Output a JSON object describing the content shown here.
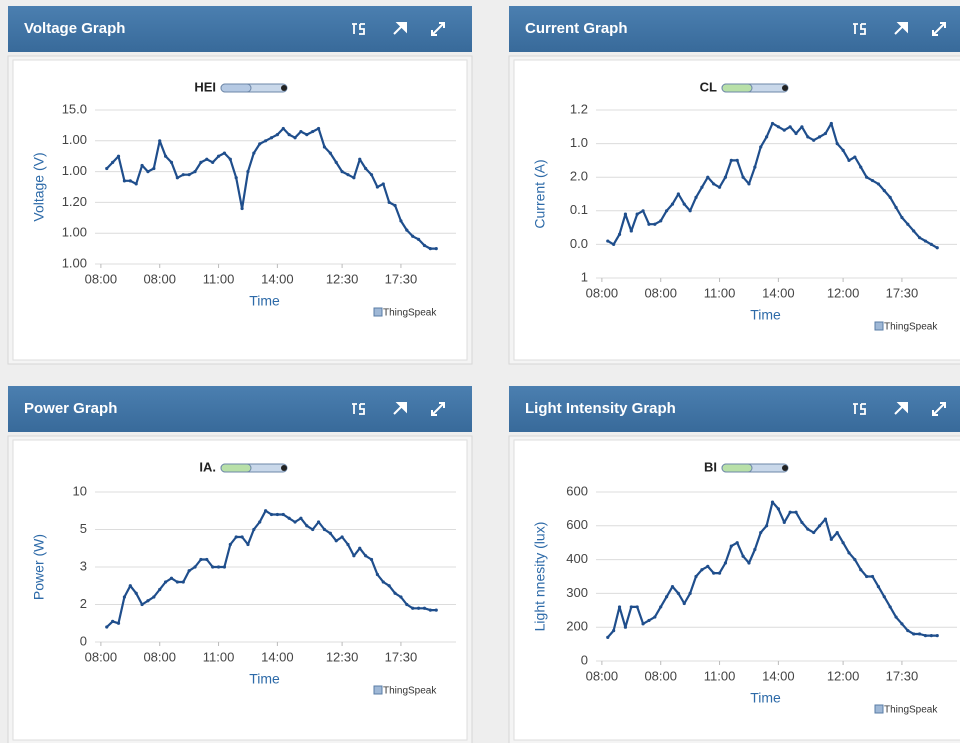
{
  "chart_data": [
    {
      "type": "line",
      "title": "Voltage Graph",
      "x_label": "Time",
      "y_label": "Voltage (V)",
      "credit": "ThingSpeak",
      "xlim": [
        0,
        60
      ],
      "ylim": [
        0,
        5
      ],
      "xticks": [
        {
          "value": 1,
          "label": "08:00"
        },
        {
          "value": 11,
          "label": "08:00"
        },
        {
          "value": 21,
          "label": "11:00"
        },
        {
          "value": 31,
          "label": "14:00"
        },
        {
          "value": 42,
          "label": "12:30"
        },
        {
          "value": 52,
          "label": "17:30"
        }
      ],
      "yticks": [
        {
          "value": 5,
          "label": "15.0"
        },
        {
          "value": 4,
          "label": "1.00"
        },
        {
          "value": 3,
          "label": "1.00"
        },
        {
          "value": 2,
          "label": "1.20"
        },
        {
          "value": 1,
          "label": "1.00"
        },
        {
          "value": 0,
          "label": "1.00"
        }
      ],
      "grid": true,
      "x": [
        2,
        3,
        4,
        5,
        6,
        7,
        8,
        9,
        10,
        11,
        12,
        13,
        14,
        15,
        16,
        17,
        18,
        19,
        20,
        21,
        22,
        23,
        24,
        25,
        26,
        27,
        28,
        29,
        30,
        31,
        32,
        33,
        34,
        35,
        36,
        37,
        38,
        39,
        40,
        41,
        42,
        43,
        44,
        45,
        46,
        47,
        48,
        49,
        50,
        51,
        52,
        53,
        54,
        55,
        56,
        57,
        58
      ],
      "series": [
        {
          "name": "HEI",
          "color": "#1f4e8c",
          "values": [
            3.1,
            3.3,
            3.5,
            2.7,
            2.7,
            2.6,
            3.2,
            3.0,
            3.1,
            4.0,
            3.5,
            3.3,
            2.8,
            2.9,
            2.9,
            3.0,
            3.3,
            3.4,
            3.3,
            3.5,
            3.6,
            3.4,
            2.8,
            1.8,
            3.0,
            3.6,
            3.9,
            4.0,
            4.1,
            4.2,
            4.4,
            4.2,
            4.1,
            4.3,
            4.2,
            4.3,
            4.4,
            3.8,
            3.6,
            3.3,
            3.0,
            2.9,
            2.8,
            3.4,
            3.1,
            2.9,
            2.5,
            2.6,
            2.0,
            1.9,
            1.4,
            1.1,
            0.9,
            0.8,
            0.6,
            0.5,
            0.5
          ]
        }
      ]
    },
    {
      "type": "line",
      "title": "Current Graph",
      "x_label": "Time",
      "y_label": "Current (A)",
      "credit": "ThingSpeak",
      "xlim": [
        0,
        60
      ],
      "ylim": [
        0,
        5
      ],
      "xticks": [
        {
          "value": 1,
          "label": "08:00"
        },
        {
          "value": 11,
          "label": "08:00"
        },
        {
          "value": 21,
          "label": "11:00"
        },
        {
          "value": 31,
          "label": "14:00"
        },
        {
          "value": 42,
          "label": "12:00"
        },
        {
          "value": 52,
          "label": "17:30"
        }
      ],
      "yticks": [
        {
          "value": 5,
          "label": "1.2"
        },
        {
          "value": 4,
          "label": "1.0"
        },
        {
          "value": 3,
          "label": "2.0"
        },
        {
          "value": 2,
          "label": "0.1"
        },
        {
          "value": 1,
          "label": "0.0"
        },
        {
          "value": 0,
          "label": "1"
        }
      ],
      "grid": true,
      "x": [
        2,
        3,
        4,
        5,
        6,
        7,
        8,
        9,
        10,
        11,
        12,
        13,
        14,
        15,
        16,
        17,
        18,
        19,
        20,
        21,
        22,
        23,
        24,
        25,
        26,
        27,
        28,
        29,
        30,
        31,
        32,
        33,
        34,
        35,
        36,
        37,
        38,
        39,
        40,
        41,
        42,
        43,
        44,
        45,
        46,
        47,
        48,
        49,
        50,
        51,
        52,
        53,
        54,
        55,
        56,
        57,
        58
      ],
      "series": [
        {
          "name": "CL",
          "color": "#1f4e8c",
          "values": [
            1.1,
            1.0,
            1.3,
            1.9,
            1.4,
            1.9,
            2.0,
            1.6,
            1.6,
            1.7,
            2.0,
            2.2,
            2.5,
            2.2,
            2.0,
            2.4,
            2.7,
            3.0,
            2.8,
            2.7,
            3.0,
            3.5,
            3.5,
            3.0,
            2.8,
            3.3,
            3.9,
            4.2,
            4.6,
            4.5,
            4.4,
            4.5,
            4.3,
            4.5,
            4.2,
            4.1,
            4.2,
            4.3,
            4.6,
            4.0,
            3.8,
            3.5,
            3.6,
            3.3,
            3.0,
            2.9,
            2.8,
            2.6,
            2.4,
            2.1,
            1.8,
            1.6,
            1.4,
            1.2,
            1.1,
            1.0,
            0.9
          ]
        }
      ]
    },
    {
      "type": "line",
      "title": "Power Graph",
      "x_label": "Time",
      "y_label": "Power (W)",
      "credit": "ThingSpeak",
      "xlim": [
        0,
        60
      ],
      "ylim": [
        0,
        4
      ],
      "xticks": [
        {
          "value": 1,
          "label": "08:00"
        },
        {
          "value": 11,
          "label": "08:00"
        },
        {
          "value": 21,
          "label": "11:00"
        },
        {
          "value": 31,
          "label": "14:00"
        },
        {
          "value": 42,
          "label": "12:30"
        },
        {
          "value": 52,
          "label": "17:30"
        }
      ],
      "yticks": [
        {
          "value": 4,
          "label": "10"
        },
        {
          "value": 3,
          "label": "5"
        },
        {
          "value": 2,
          "label": "3"
        },
        {
          "value": 1,
          "label": "2"
        },
        0
      ],
      "grid": true,
      "x": [
        2,
        3,
        4,
        5,
        6,
        7,
        8,
        9,
        10,
        11,
        12,
        13,
        14,
        15,
        16,
        17,
        18,
        19,
        20,
        21,
        22,
        23,
        24,
        25,
        26,
        27,
        28,
        29,
        30,
        31,
        32,
        33,
        34,
        35,
        36,
        37,
        38,
        39,
        40,
        41,
        42,
        43,
        44,
        45,
        46,
        47,
        48,
        49,
        50,
        51,
        52,
        53,
        54,
        55,
        56,
        57,
        58
      ],
      "series": [
        {
          "name": "IA.",
          "color": "#1f4e8c",
          "values": [
            0.4,
            0.55,
            0.5,
            1.2,
            1.5,
            1.3,
            1.0,
            1.1,
            1.2,
            1.4,
            1.6,
            1.7,
            1.6,
            1.6,
            1.9,
            2.0,
            2.2,
            2.2,
            2.0,
            2.0,
            2.0,
            2.6,
            2.8,
            2.8,
            2.6,
            3.0,
            3.2,
            3.5,
            3.4,
            3.4,
            3.4,
            3.3,
            3.2,
            3.3,
            3.1,
            3.0,
            3.2,
            3.0,
            2.9,
            2.7,
            2.8,
            2.6,
            2.3,
            2.5,
            2.3,
            2.2,
            1.8,
            1.6,
            1.5,
            1.3,
            1.2,
            1.0,
            0.9,
            0.9,
            0.9,
            0.85,
            0.85
          ]
        }
      ]
    },
    {
      "type": "line",
      "title": "Light Intensity Graph",
      "x_label": "Time",
      "y_label": "Light nnesity (lux)",
      "credit": "ThingSpeak",
      "xlim": [
        0,
        60
      ],
      "ylim": [
        0,
        5
      ],
      "xticks": [
        {
          "value": 1,
          "label": "08:00"
        },
        {
          "value": 11,
          "label": "08:00"
        },
        {
          "value": 21,
          "label": "11:00"
        },
        {
          "value": 31,
          "label": "14:00"
        },
        {
          "value": 42,
          "label": "12:00"
        },
        {
          "value": 52,
          "label": "17:30"
        }
      ],
      "yticks": [
        {
          "value": 5,
          "label": "600"
        },
        {
          "value": 4,
          "label": "600"
        },
        {
          "value": 3,
          "label": "400"
        },
        {
          "value": 2,
          "label": "300"
        },
        {
          "value": 1,
          "label": "200"
        },
        0
      ],
      "grid": true,
      "x": [
        2,
        3,
        4,
        5,
        6,
        7,
        8,
        9,
        10,
        11,
        12,
        13,
        14,
        15,
        16,
        17,
        18,
        19,
        20,
        21,
        22,
        23,
        24,
        25,
        26,
        27,
        28,
        29,
        30,
        31,
        32,
        33,
        34,
        35,
        36,
        37,
        38,
        39,
        40,
        41,
        42,
        43,
        44,
        45,
        46,
        47,
        48,
        49,
        50,
        51,
        52,
        53,
        54,
        55,
        56,
        57,
        58
      ],
      "series": [
        {
          "name": "BI",
          "color": "#1f4e8c",
          "values": [
            0.7,
            0.9,
            1.6,
            1.0,
            1.6,
            1.6,
            1.1,
            1.2,
            1.3,
            1.6,
            1.9,
            2.2,
            2.0,
            1.7,
            2.0,
            2.5,
            2.7,
            2.8,
            2.6,
            2.6,
            2.9,
            3.4,
            3.5,
            3.1,
            2.9,
            3.3,
            3.8,
            4.0,
            4.7,
            4.5,
            4.1,
            4.4,
            4.4,
            4.1,
            3.9,
            3.8,
            4.0,
            4.2,
            3.6,
            3.8,
            3.5,
            3.2,
            3.0,
            2.7,
            2.5,
            2.5,
            2.2,
            1.9,
            1.6,
            1.3,
            1.1,
            0.9,
            0.8,
            0.8,
            0.75,
            0.75,
            0.75
          ]
        }
      ]
    }
  ]
}
